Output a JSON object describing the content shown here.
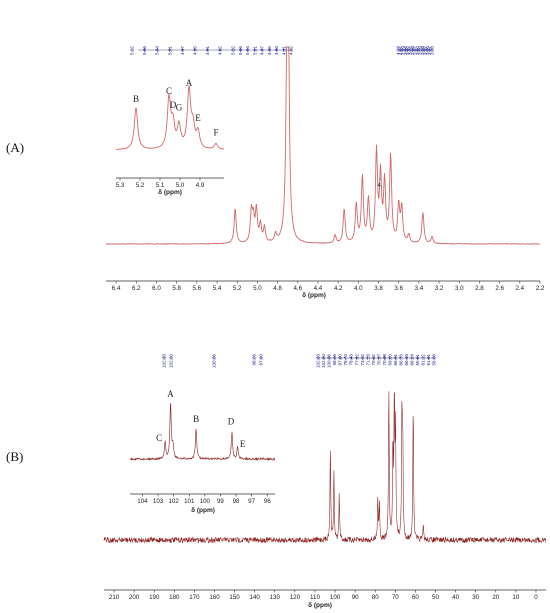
{
  "panels": {
    "A": "(A)",
    "B": "(B)"
  },
  "colors": {
    "h_spectrum": "#cf6b6b",
    "c_spectrum": "#8b1a1a",
    "peak_labels": "#1a1a8c",
    "axis": "#333333"
  },
  "chart_data": [
    {
      "id": "h1_nmr",
      "type": "line",
      "panel": "(A)",
      "xlabel": "δ (ppm)",
      "x_reversed": true,
      "xlim": [
        6.5,
        2.2
      ],
      "xticks": [
        "6.4",
        "6.2",
        "6.0",
        "5.8",
        "5.6",
        "5.4",
        "5.2",
        "5.0",
        "4.8",
        "4.6",
        "4.4",
        "4.2",
        "4.0",
        "3.8",
        "3.6",
        "3.4",
        "3.2",
        "3.0",
        "2.8",
        "2.6",
        "2.4",
        "2.2"
      ],
      "peak_labels": [
        "5.22",
        "5.06",
        "5.04",
        "5.01",
        "4.97",
        "4.95",
        "4.91",
        "4.82",
        "5.22",
        "5.06",
        "5.04",
        "5.01",
        "4.97",
        "4.95",
        "4.93",
        "4.91",
        "4.82",
        "4.14",
        "4.01",
        "3.99",
        "3.94",
        "3.82",
        "3.72",
        "3.68",
        "3.67",
        "3.60",
        "3.59",
        "3.58",
        "3.57",
        "3.36",
        "3.27",
        "3.28"
      ],
      "peaks": [
        {
          "x": 5.22,
          "h": 0.43
        },
        {
          "x": 5.06,
          "h": 0.37
        },
        {
          "x": 5.04,
          "h": 0.28
        },
        {
          "x": 5.01,
          "h": 0.4
        },
        {
          "x": 4.97,
          "h": 0.22
        },
        {
          "x": 4.93,
          "h": 0.18
        },
        {
          "x": 4.82,
          "h": 0.1
        },
        {
          "x": 4.7,
          "h": 5.0
        },
        {
          "x": 4.23,
          "h": 0.1
        },
        {
          "x": 4.14,
          "h": 0.42
        },
        {
          "x": 4.02,
          "h": 0.47
        },
        {
          "x": 3.96,
          "h": 0.8
        },
        {
          "x": 3.9,
          "h": 0.52
        },
        {
          "x": 3.82,
          "h": 1.1
        },
        {
          "x": 3.78,
          "h": 0.8
        },
        {
          "x": 3.74,
          "h": 0.72
        },
        {
          "x": 3.68,
          "h": 1.05
        },
        {
          "x": 3.6,
          "h": 0.45
        },
        {
          "x": 3.57,
          "h": 0.42
        },
        {
          "x": 3.5,
          "h": 0.1
        },
        {
          "x": 3.36,
          "h": 0.38
        },
        {
          "x": 3.27,
          "h": 0.08
        }
      ],
      "inset": {
        "xlabel": "δ (ppm)",
        "xlim": [
          5.32,
          4.78
        ],
        "xticks": [
          "5.3",
          "5.2",
          "5.1",
          "5.0",
          "4.9",
          "4."
        ],
        "labels": [
          {
            "text": "A",
            "x": 4.955,
            "h": 1.0
          },
          {
            "text": "B",
            "x": 5.22,
            "h": 0.72
          },
          {
            "text": "C",
            "x": 5.055,
            "h": 0.86
          },
          {
            "text": "D",
            "x": 5.035,
            "h": 0.62
          },
          {
            "text": "G",
            "x": 5.005,
            "h": 0.58
          },
          {
            "text": "E",
            "x": 4.91,
            "h": 0.4
          },
          {
            "text": "F",
            "x": 4.82,
            "h": 0.15
          }
        ]
      }
    },
    {
      "id": "c13_nmr",
      "type": "line",
      "panel": "(B)",
      "xlabel": "δ (ppm)",
      "x_reversed": true,
      "xlim": [
        215,
        -5
      ],
      "xticks": [
        "210",
        "200",
        "190",
        "180",
        "170",
        "160",
        "150",
        "140",
        "130",
        "120",
        "110",
        "100",
        "90",
        "80",
        "70",
        "60",
        "50",
        "40",
        "30",
        "20",
        "10",
        "0"
      ],
      "peak_labels": [
        "102.33",
        "102.20",
        "100.56",
        "98.26",
        "97.90",
        "102.33",
        "102.20",
        "100.56",
        "98.26",
        "97.90",
        "78.72",
        "78.43",
        "77.92",
        "73.22",
        "71.20",
        "70.62",
        "70.37",
        "70.08",
        "69.63",
        "66.91",
        "66.73",
        "66.43",
        "66.24",
        "65.61",
        "61.12",
        "61.01",
        "56.08"
      ],
      "peaks": [
        {
          "x": 102.33,
          "h": 0.62
        },
        {
          "x": 100.56,
          "h": 0.45
        },
        {
          "x": 97.9,
          "h": 0.3
        },
        {
          "x": 78.72,
          "h": 0.28
        },
        {
          "x": 77.92,
          "h": 0.24
        },
        {
          "x": 73.22,
          "h": 1.0
        },
        {
          "x": 71.2,
          "h": 0.6
        },
        {
          "x": 70.5,
          "h": 0.95
        },
        {
          "x": 69.9,
          "h": 0.74
        },
        {
          "x": 66.7,
          "h": 0.83
        },
        {
          "x": 66.3,
          "h": 0.62
        },
        {
          "x": 61.1,
          "h": 0.9
        },
        {
          "x": 56.08,
          "h": 0.1
        }
      ],
      "inset": {
        "xlabel": "δ (ppm)",
        "xlim": [
          104.8,
          95.5
        ],
        "xticks": [
          "104",
          "103",
          "102",
          "101",
          "100",
          "99",
          "98",
          "97",
          "96"
        ],
        "labels": [
          {
            "text": "A",
            "x": 102.2,
            "h": 1.0
          },
          {
            "text": "B",
            "x": 100.56,
            "h": 0.55
          },
          {
            "text": "C",
            "x": 102.55,
            "h": 0.42
          },
          {
            "text": "D",
            "x": 98.26,
            "h": 0.5
          },
          {
            "text": "E",
            "x": 97.9,
            "h": 0.25
          }
        ]
      }
    }
  ]
}
